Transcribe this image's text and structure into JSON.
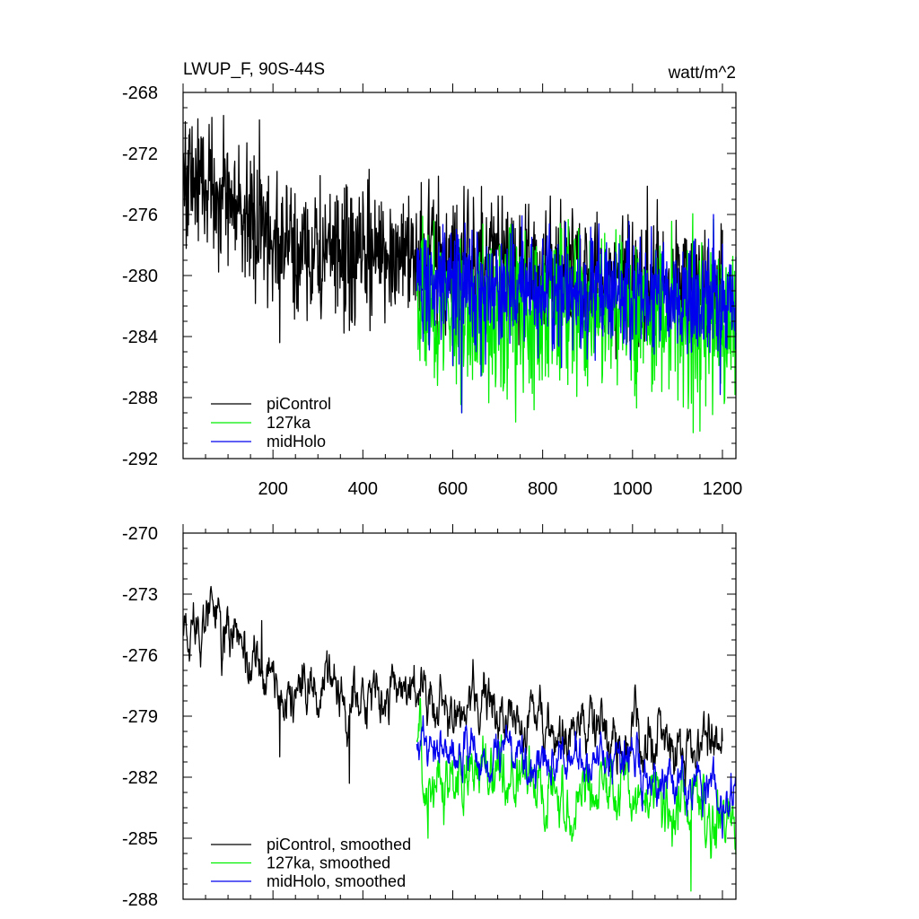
{
  "chart_data": [
    {
      "type": "line",
      "title": "LWUP_F, 90S-44S",
      "units": "watt/m^2",
      "xlim": [
        0,
        1230
      ],
      "ylim": [
        -292,
        -268
      ],
      "x_ticks": [
        200,
        400,
        600,
        800,
        1000,
        1200
      ],
      "y_ticks": [
        -292,
        -288,
        -284,
        -280,
        -276,
        -272,
        -268
      ],
      "x_tick_labels": [
        "200",
        "400",
        "600",
        "800",
        "1000",
        "1200"
      ],
      "y_tick_labels": [
        "-292",
        "-288",
        "-284",
        "-280",
        "-276",
        "-272",
        "-268"
      ],
      "legend": {
        "placement": "bottom-left"
      },
      "series": [
        {
          "name": "piControl",
          "color": "#000000",
          "x_range": [
            1,
            1200
          ],
          "level": [
            [
              0,
              -273.5
            ],
            [
              60,
              -273.8
            ],
            [
              150,
              -276.5
            ],
            [
              250,
              -278.5
            ],
            [
              400,
              -278.8
            ],
            [
              510,
              -278.2
            ],
            [
              600,
              -279.2
            ],
            [
              800,
              -279.5
            ],
            [
              1000,
              -280.0
            ],
            [
              1200,
              -280.3
            ]
          ],
          "noise": 2.2,
          "spikes": [
            [
              170,
              -269.8
            ],
            [
              215,
              -284.4
            ],
            [
              370,
              -283.6
            ]
          ]
        },
        {
          "name": "127ka",
          "color": "#00ee00",
          "x_range": [
            520,
            1230
          ],
          "level": [
            [
              520,
              -280.0
            ],
            [
              560,
              -282.5
            ],
            [
              800,
              -282.2
            ],
            [
              1000,
              -282.3
            ],
            [
              1230,
              -283.5
            ]
          ],
          "noise": 2.6,
          "spikes": [
            [
              620,
              -289.0
            ],
            [
              740,
              -289.6
            ],
            [
              1135,
              -290.3
            ],
            [
              1150,
              -290.2
            ],
            [
              1180,
              -276.3
            ]
          ]
        },
        {
          "name": "midHolo",
          "color": "#0000ee",
          "x_range": [
            520,
            1230
          ],
          "level": [
            [
              520,
              -280.0
            ],
            [
              560,
              -281.0
            ],
            [
              800,
              -280.8
            ],
            [
              1000,
              -281.0
            ],
            [
              1230,
              -282.0
            ]
          ],
          "noise": 2.0,
          "spikes": [
            [
              620,
              -289.0
            ],
            [
              1195,
              -287.8
            ],
            [
              1180,
              -276.0
            ]
          ]
        }
      ]
    },
    {
      "type": "line",
      "xlim": [
        0,
        1230
      ],
      "ylim": [
        -288,
        -270
      ],
      "x_ticks": [
        200,
        400,
        600,
        800,
        1000,
        1200
      ],
      "y_ticks": [
        -288,
        -285,
        -282,
        -279,
        -276,
        -273,
        -270
      ],
      "y_tick_labels": [
        "-288",
        "-285",
        "-282",
        "-279",
        "-276",
        "-273",
        "-270"
      ],
      "legend": {
        "placement": "bottom-left"
      },
      "series": [
        {
          "name": "piControl, smoothed",
          "color": "#000000",
          "x_range": [
            1,
            1200
          ],
          "level": [
            [
              0,
              -274.2
            ],
            [
              70,
              -274.0
            ],
            [
              150,
              -276.8
            ],
            [
              250,
              -278.0
            ],
            [
              400,
              -278.3
            ],
            [
              510,
              -277.5
            ],
            [
              600,
              -278.8
            ],
            [
              800,
              -279.5
            ],
            [
              1000,
              -280.2
            ],
            [
              1200,
              -280.5
            ]
          ],
          "noise": 1.1,
          "spikes": [
            [
              175,
              -274.3
            ],
            [
              215,
              -281.0
            ],
            [
              370,
              -282.3
            ]
          ]
        },
        {
          "name": "127ka, smoothed",
          "color": "#00ee00",
          "x_range": [
            520,
            1230
          ],
          "level": [
            [
              520,
              -280.0
            ],
            [
              560,
              -282.0
            ],
            [
              800,
              -282.5
            ],
            [
              1000,
              -282.7
            ],
            [
              1230,
              -284.0
            ]
          ],
          "noise": 1.3,
          "spikes": [
            [
              545,
              -285.0
            ],
            [
              1130,
              -287.6
            ],
            [
              1230,
              -285.8
            ]
          ]
        },
        {
          "name": "midHolo, smoothed",
          "color": "#0000ee",
          "x_range": [
            520,
            1230
          ],
          "level": [
            [
              520,
              -280.0
            ],
            [
              560,
              -281.0
            ],
            [
              800,
              -281.0
            ],
            [
              1000,
              -281.5
            ],
            [
              1230,
              -282.8
            ]
          ],
          "noise": 0.9,
          "spikes": [
            [
              1200,
              -285.0
            ]
          ]
        }
      ]
    }
  ]
}
